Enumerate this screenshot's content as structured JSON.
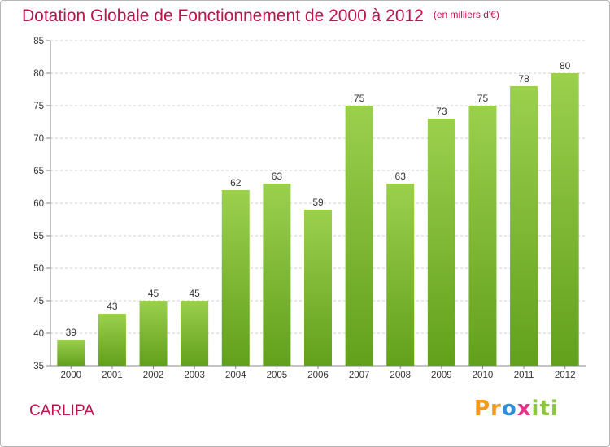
{
  "header": {
    "title": "Dotation Globale de Fonctionnement de 2000 à 2012",
    "subtitle": "(en milliers d'€)"
  },
  "footer": {
    "commune": "CARLIPA",
    "logo": {
      "p1": "Pr",
      "p2": "o",
      "p3": "x",
      "p4": "iti"
    }
  },
  "colors": {
    "accent": "#c0124a",
    "bar_top": "#9bd04d",
    "bar_bottom": "#62a01c",
    "grid": "#cccccc",
    "axis": "#888888"
  },
  "chart_data": {
    "type": "bar",
    "title": "Dotation Globale de Fonctionnement de 2000 à 2012",
    "subtitle": "(en milliers d'€)",
    "xlabel": "",
    "ylabel": "",
    "categories": [
      "2000",
      "2001",
      "2002",
      "2003",
      "2004",
      "2005",
      "2006",
      "2007",
      "2008",
      "2009",
      "2010",
      "2011",
      "2012"
    ],
    "values": [
      39,
      43,
      45,
      45,
      62,
      63,
      59,
      75,
      63,
      73,
      75,
      78,
      80
    ],
    "ylim": [
      35,
      85
    ],
    "yticks": [
      35,
      40,
      45,
      50,
      55,
      60,
      65,
      70,
      75,
      80,
      85
    ],
    "grid": "horizontal dashed",
    "legend": "none"
  }
}
